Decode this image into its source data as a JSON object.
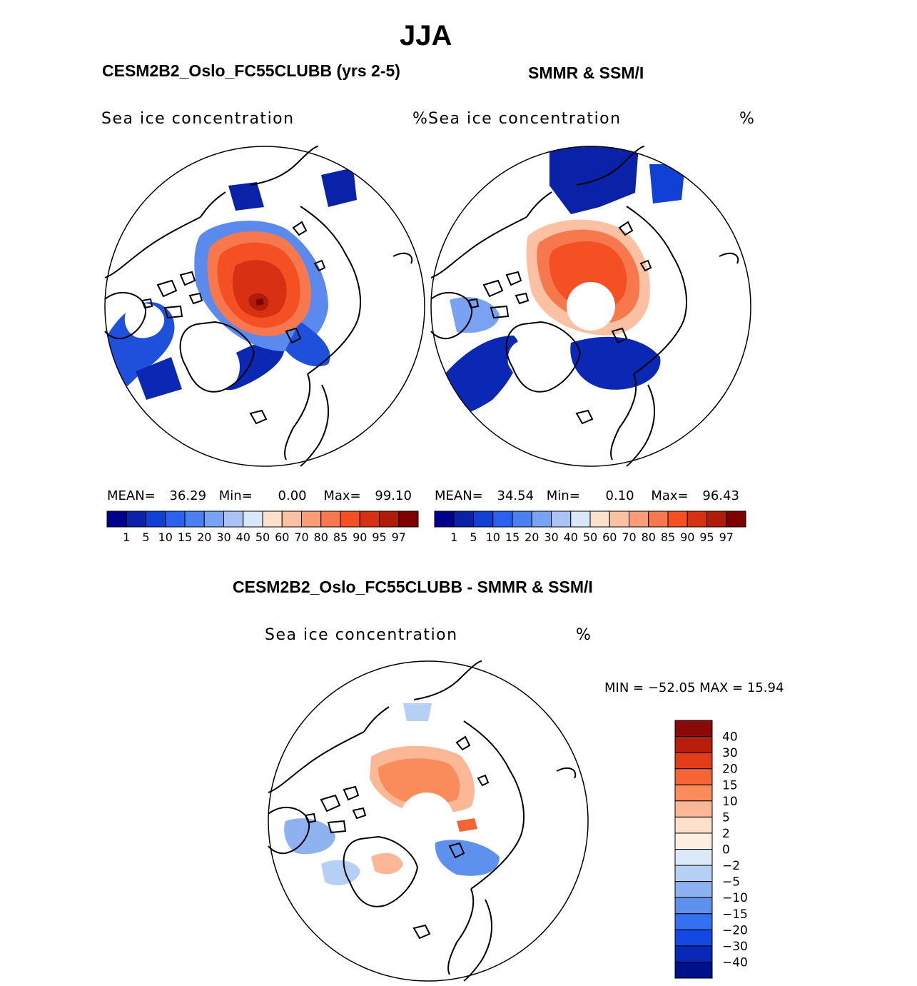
{
  "figure": {
    "season": "JJA"
  },
  "panels": [
    {
      "title": "CESM2B2_Oslo_FC55CLUBB (yrs 2-5)",
      "field": "Sea ice concentration",
      "units": "%",
      "stats": {
        "mean_label": "MEAN=",
        "mean": "36.29",
        "min_label": "Min=",
        "min": "0.00",
        "max_label": "Max=",
        "max": "99.10"
      },
      "colorbar": {
        "colors": [
          "#00008c",
          "#0a22a8",
          "#1040d4",
          "#2c60ee",
          "#4a80f0",
          "#7aa2f2",
          "#a9c4f4",
          "#d8e8f8",
          "#fde0cc",
          "#fcc0a2",
          "#fa9c76",
          "#f8784e",
          "#f45024",
          "#d83012",
          "#b01c0a",
          "#800000"
        ],
        "ticks": [
          "1",
          "5",
          "10",
          "15",
          "20",
          "30",
          "40",
          "50",
          "60",
          "70",
          "80",
          "85",
          "90",
          "95",
          "97"
        ]
      }
    },
    {
      "title": "SMMR & SSM/I",
      "field": "Sea ice concentration",
      "units": "%",
      "stats": {
        "mean_label": "MEAN=",
        "mean": "34.54",
        "min_label": "Min=",
        "min": "0.10",
        "max_label": "Max=",
        "max": "96.43"
      },
      "colorbar": {
        "colors": [
          "#00008c",
          "#0a22a8",
          "#1040d4",
          "#2c60ee",
          "#4a80f0",
          "#7aa2f2",
          "#a9c4f4",
          "#d8e8f8",
          "#fde0cc",
          "#fcc0a2",
          "#fa9c76",
          "#f8784e",
          "#f45024",
          "#d83012",
          "#b01c0a",
          "#800000"
        ],
        "ticks": [
          "1",
          "5",
          "10",
          "15",
          "20",
          "30",
          "40",
          "50",
          "60",
          "70",
          "80",
          "85",
          "90",
          "95",
          "97"
        ]
      }
    }
  ],
  "difference": {
    "title": "CESM2B2_Oslo_FC55CLUBB - SMMR & SSM/I",
    "field": "Sea ice concentration",
    "units": "%",
    "minmax_label": "MIN = −52.05  MAX =   15.94",
    "colorbar": {
      "colors_top_to_bottom": [
        "#8a0a0a",
        "#b81e0e",
        "#e23c1a",
        "#f56434",
        "#fa8c5c",
        "#fcb896",
        "#fde0cc",
        "#fdeee2",
        "#dce9f8",
        "#b6cff4",
        "#8eb2f0",
        "#5e90ee",
        "#3470f0",
        "#1448e4",
        "#0828b8",
        "#00108a"
      ],
      "labels": [
        "40",
        "30",
        "20",
        "15",
        "10",
        "5",
        "2",
        "0",
        "−2",
        "−5",
        "−10",
        "−15",
        "−20",
        "−30",
        "−40"
      ]
    }
  },
  "map_colors": {
    "land_outline": "#000000",
    "pole_hole": "#ffffff"
  }
}
